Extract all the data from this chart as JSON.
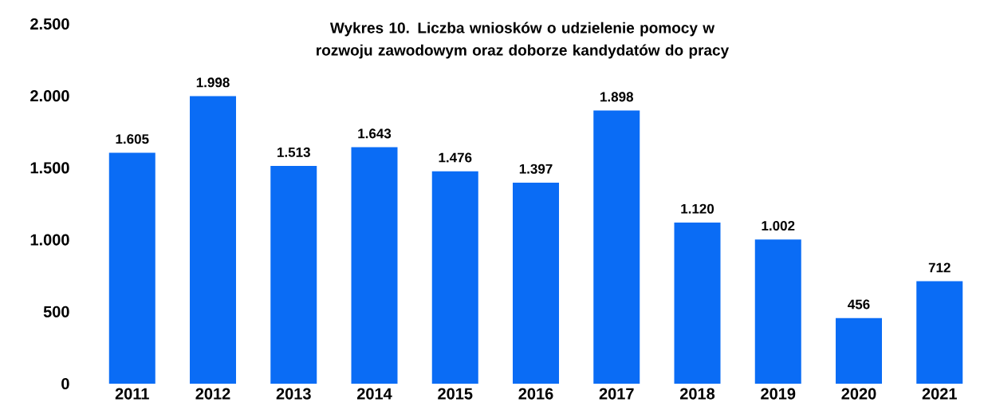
{
  "chart_data": {
    "type": "bar",
    "title": "Wykres 10. Liczba wniosków o udzielenie pomocy w rozwoju zawodowym oraz doborze kandydatów do pracy",
    "categories": [
      "2011",
      "2012",
      "2013",
      "2014",
      "2015",
      "2016",
      "2017",
      "2018",
      "2019",
      "2020",
      "2021"
    ],
    "values": [
      1605,
      1998,
      1513,
      1643,
      1476,
      1397,
      1898,
      1120,
      1002,
      456,
      712
    ],
    "value_labels": [
      "1.605",
      "1.998",
      "1.513",
      "1.643",
      "1.476",
      "1.397",
      "1.898",
      "1.120",
      "1.002",
      "456",
      "712"
    ],
    "color": "#0a6cf5",
    "ylim": [
      0,
      2500
    ],
    "yticks": [
      {
        "value": 0,
        "label": "0"
      },
      {
        "value": 500,
        "label": "500"
      },
      {
        "value": 1000,
        "label": "1.000"
      },
      {
        "value": 1500,
        "label": "1.500"
      },
      {
        "value": 2000,
        "label": "2.000"
      },
      {
        "value": 2500,
        "label": "2.500"
      }
    ],
    "grid": false
  }
}
